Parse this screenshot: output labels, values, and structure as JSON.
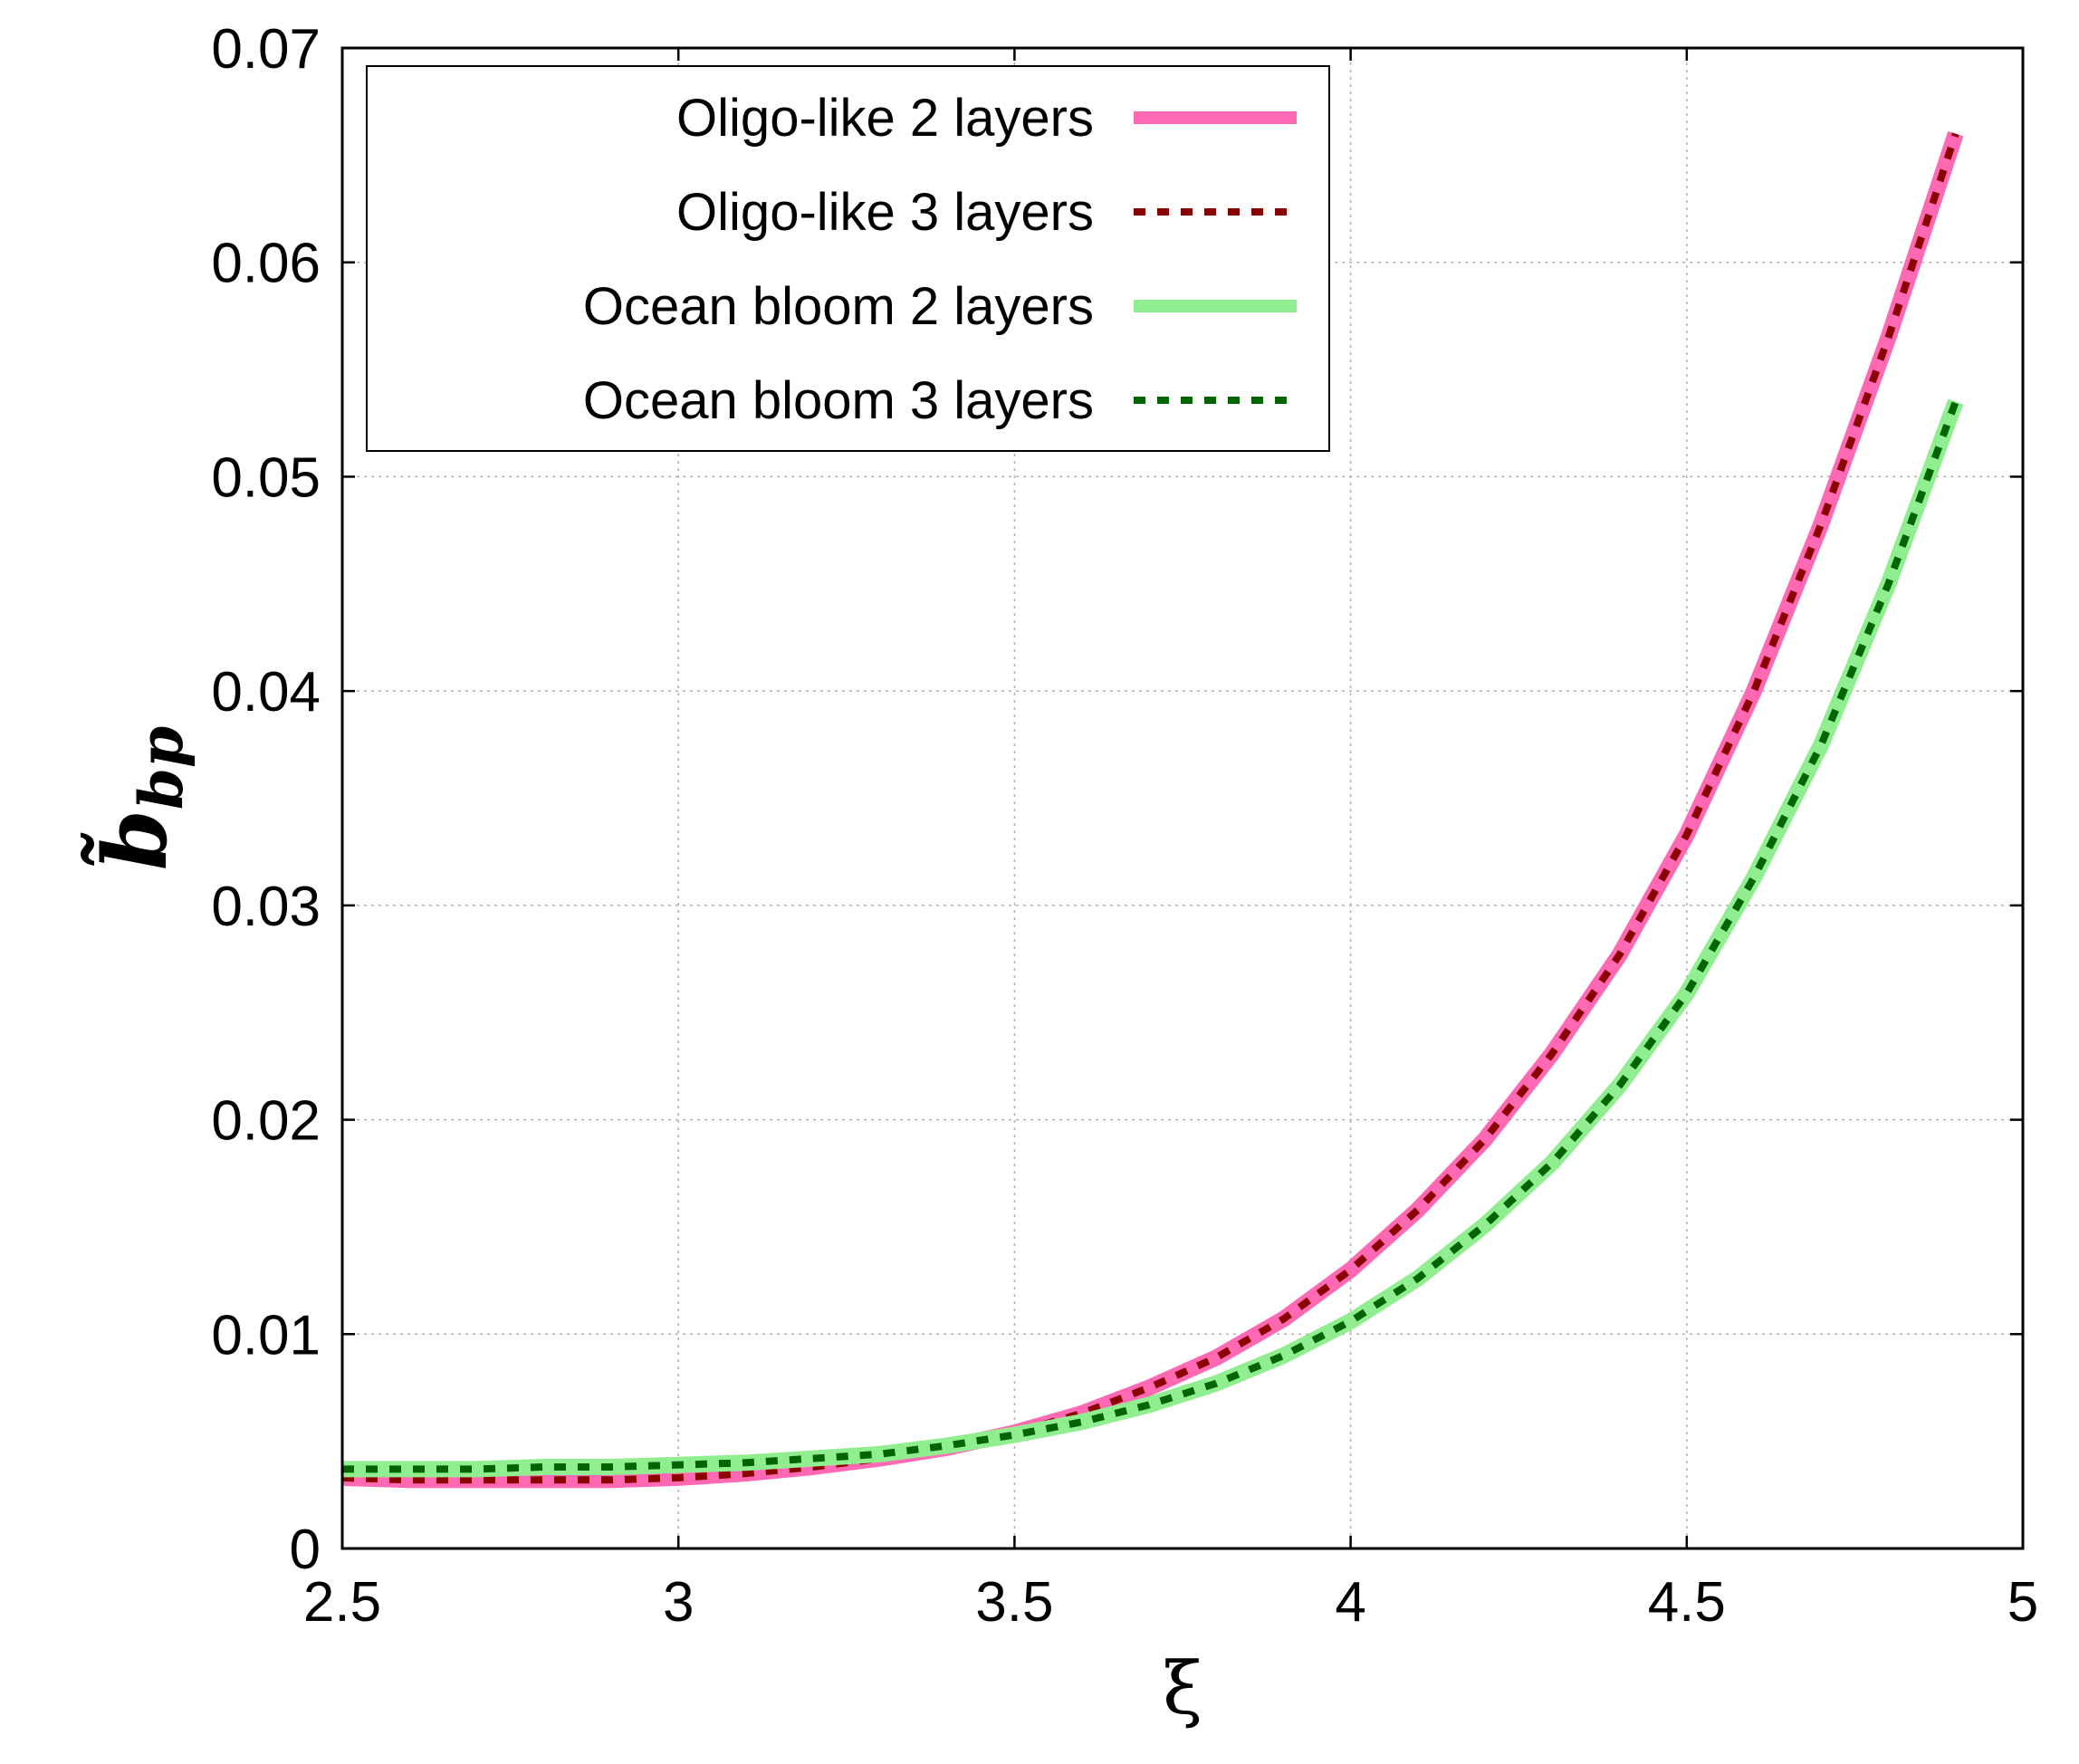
{
  "chart_data": {
    "type": "line",
    "title": "",
    "xlabel": "ξ",
    "ylabel": {
      "base": "b̃",
      "subscript": "bp"
    },
    "xlim": [
      2.5,
      5
    ],
    "ylim": [
      0,
      0.07
    ],
    "xticks": [
      2.5,
      3,
      3.5,
      4,
      4.5,
      5
    ],
    "xtick_labels": [
      "2.5",
      "3",
      "3.5",
      "4",
      "4.5",
      "5"
    ],
    "yticks": [
      0,
      0.01,
      0.02,
      0.03,
      0.04,
      0.05,
      0.06,
      0.07
    ],
    "ytick_labels": [
      "0",
      "0.01",
      "0.02",
      "0.03",
      "0.04",
      "0.05",
      "0.06",
      "0.07"
    ],
    "grid": true,
    "legend_position": "top-left",
    "x": [
      2.5,
      2.6,
      2.7,
      2.8,
      2.9,
      3.0,
      3.1,
      3.2,
      3.3,
      3.4,
      3.5,
      3.6,
      3.7,
      3.8,
      3.9,
      4.0,
      4.1,
      4.2,
      4.3,
      4.4,
      4.5,
      4.6,
      4.7,
      4.8,
      4.9
    ],
    "series": [
      {
        "name": "Oligo-like 2 layers",
        "color": "#ff69b4",
        "style": "solid",
        "values": [
          0.0033,
          0.0032,
          0.0032,
          0.0032,
          0.0032,
          0.0033,
          0.0035,
          0.0038,
          0.0042,
          0.0047,
          0.0054,
          0.0063,
          0.0075,
          0.0089,
          0.0107,
          0.013,
          0.0158,
          0.0191,
          0.0231,
          0.0277,
          0.0333,
          0.04,
          0.0478,
          0.0565,
          0.066
        ]
      },
      {
        "name": "Oligo-like 3 layers",
        "color": "#8b0000",
        "style": "dashed",
        "values": [
          0.0033,
          0.0032,
          0.0032,
          0.0032,
          0.0032,
          0.0033,
          0.0035,
          0.0038,
          0.0042,
          0.0047,
          0.0054,
          0.0063,
          0.0075,
          0.0089,
          0.0107,
          0.013,
          0.0158,
          0.0191,
          0.0231,
          0.0277,
          0.0333,
          0.04,
          0.0478,
          0.0565,
          0.066
        ]
      },
      {
        "name": "Ocean bloom 2 layers",
        "color": "#90ee90",
        "style": "solid",
        "values": [
          0.0037,
          0.0037,
          0.0037,
          0.0038,
          0.0038,
          0.0039,
          0.004,
          0.0042,
          0.0044,
          0.0048,
          0.0053,
          0.0059,
          0.0067,
          0.0077,
          0.009,
          0.0106,
          0.0126,
          0.0151,
          0.018,
          0.0216,
          0.0259,
          0.0313,
          0.0375,
          0.045,
          0.0535
        ]
      },
      {
        "name": "Ocean bloom 3 layers",
        "color": "#006400",
        "style": "dashed",
        "values": [
          0.0037,
          0.0037,
          0.0037,
          0.0038,
          0.0038,
          0.0039,
          0.004,
          0.0042,
          0.0044,
          0.0048,
          0.0053,
          0.0059,
          0.0067,
          0.0077,
          0.009,
          0.0106,
          0.0126,
          0.0151,
          0.018,
          0.0216,
          0.0259,
          0.0313,
          0.0375,
          0.045,
          0.0535
        ]
      }
    ]
  }
}
